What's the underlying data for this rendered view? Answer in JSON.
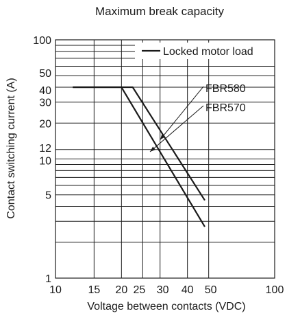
{
  "chart_data": {
    "type": "line",
    "title": "Maximum break capacity",
    "xlabel": "Voltage between contacts (VDC)",
    "ylabel": "Contact switching current (A)",
    "x_scale": "log",
    "y_scale": "log",
    "xlim": [
      10,
      100
    ],
    "ylim": [
      1,
      100
    ],
    "x_ticks": [
      10,
      15,
      20,
      25,
      30,
      40,
      50,
      100
    ],
    "y_ticks": [
      1,
      5,
      10,
      12,
      20,
      30,
      40,
      50,
      100
    ],
    "x_gridlines": [
      10,
      15,
      20,
      25,
      30,
      40,
      50,
      100
    ],
    "y_gridlines": [
      1,
      2,
      3,
      4,
      5,
      6,
      7,
      8,
      9,
      10,
      12,
      20,
      30,
      40,
      50,
      60,
      70,
      80,
      90,
      100
    ],
    "grid": true,
    "legend": {
      "placement": "top-right",
      "label": "Locked motor load"
    },
    "series": [
      {
        "name": "FBR580",
        "points": [
          [
            12,
            40
          ],
          [
            22.5,
            40
          ],
          [
            48,
            4.5
          ]
        ]
      },
      {
        "name": "FBR570",
        "points": [
          [
            12,
            40
          ],
          [
            20,
            40
          ],
          [
            48,
            2.7
          ]
        ]
      }
    ],
    "annotations": [
      {
        "text": "FBR580",
        "series": "FBR580",
        "arrow_to": [
          30,
          14.5
        ]
      },
      {
        "text": "FBR570",
        "series": "FBR570",
        "arrow_to": [
          27,
          11.5
        ]
      }
    ],
    "colors": {
      "line": "#1a1a1a",
      "grid": "#1a1a1a"
    }
  }
}
